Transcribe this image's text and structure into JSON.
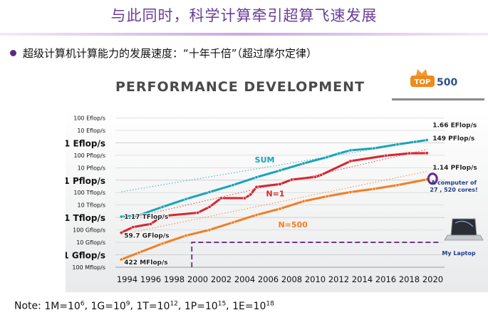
{
  "slide": {
    "title": "与此同时，科学计算牵引超算飞速发展",
    "bullet": "超级计算机计算能力的发展速度：“十年千倍”（超过摩尔定律）",
    "note_prefix": "Note: ",
    "note_items": [
      {
        "base": "1M=10",
        "exp": "6"
      },
      {
        "base": "1G=10",
        "exp": "9"
      },
      {
        "base": "1T=10",
        "exp": "12"
      },
      {
        "base": "1P=10",
        "exp": "15"
      },
      {
        "base": "1E=10",
        "exp": "18"
      }
    ]
  },
  "chart_data": {
    "type": "line",
    "title": "PERFORMANCE DEVELOPMENT",
    "logo": {
      "left": "TOP",
      "right": "500"
    },
    "y_scale": "log10",
    "y_unit": "flop/s",
    "ylim": [
      100000000.0,
      1e+21
    ],
    "xlim": [
      1993,
      2021
    ],
    "x_ticks": [
      1994,
      1996,
      1998,
      2000,
      2002,
      2004,
      2006,
      2008,
      2010,
      2012,
      2014,
      2016,
      2018,
      2020
    ],
    "y_ticks": [
      {
        "label": "100 Mflop/s",
        "value": 100000000.0,
        "major": false
      },
      {
        "label": "1 Gflop/s",
        "value": 1000000000.0,
        "major": true
      },
      {
        "label": "10 Gflop/s",
        "value": 10000000000.0,
        "major": false
      },
      {
        "label": "100 Gflop/s",
        "value": 100000000000.0,
        "major": false
      },
      {
        "label": "1 Tflop/s",
        "value": 1000000000000.0,
        "major": true
      },
      {
        "label": "10 Tflop/s",
        "value": 10000000000000.0,
        "major": false
      },
      {
        "label": "100 Tflop/s",
        "value": 100000000000000.0,
        "major": false
      },
      {
        "label": "1 Pflop/s",
        "value": 1000000000000000.0,
        "major": true
      },
      {
        "label": "10 Pflop/s",
        "value": 1e+16,
        "major": false
      },
      {
        "label": "100 Pflop/s",
        "value": 1e+17,
        "major": false
      },
      {
        "label": "1 Eflop/s",
        "value": 1e+18,
        "major": true
      },
      {
        "label": "10 Eflop/s",
        "value": 1e+19,
        "major": false
      },
      {
        "label": "100 Eflop/s",
        "value": 1e+20,
        "major": false
      }
    ],
    "series": [
      {
        "name": "SUM",
        "color": "#1aa3b8",
        "x": [
          1993.5,
          1995,
          1997,
          1999,
          2001,
          2003,
          2005,
          2007,
          2009,
          2011,
          2012,
          2013,
          2015,
          2017,
          2018.5,
          2019.5
        ],
        "values": [
          1170000000000.0,
          1500000000000.0,
          7000000000000.0,
          30000000000000.0,
          110000000000000.0,
          400000000000000.0,
          1700000000000000.0,
          6000000000000000.0,
          2.2e+16,
          7e+16,
          1.4e+17,
          2.5e+17,
          3.6e+17,
          7.5e+17,
          1.2e+18,
          1.66e+18
        ]
      },
      {
        "name": "N=1",
        "color": "#d7262e",
        "x": [
          1993.5,
          1994.5,
          1996,
          1997,
          2000,
          2001,
          2002,
          2004,
          2004.5,
          2005,
          2007,
          2008,
          2010,
          2010.5,
          2013,
          2016,
          2018,
          2019.5
        ],
        "values": [
          59700000000.0,
          170000000000.0,
          300000000000.0,
          1300000000000.0,
          2400000000000.0,
          7000000000000.0,
          36000000000000.0,
          36000000000000.0,
          70000000000000.0,
          280000000000000.0,
          480000000000000.0,
          1100000000000000.0,
          1800000000000000.0,
          2600000000000000.0,
          3.4e+16,
          9.3e+16,
          1.43e+17,
          1.49e+17
        ]
      },
      {
        "name": "N=500",
        "color": "#f07f24",
        "x": [
          1993.5,
          1995,
          1997,
          1999,
          2001,
          2003,
          2005,
          2007,
          2009,
          2011,
          2013,
          2015,
          2017,
          2019.5
        ],
        "values": [
          422000000.0,
          1500000000.0,
          8000000000.0,
          35000000000.0,
          100000000000.0,
          400000000000.0,
          1600000000000.0,
          5000000000000.0,
          20000000000000.0,
          50000000000000.0,
          110000000000000.0,
          200000000000000.0,
          400000000000000.0,
          1140000000000000.0
        ]
      }
    ],
    "trend_lines": [
      {
        "series": "SUM",
        "x": [
          1993.5,
          2019.5
        ],
        "values": [
          117000000000000.0,
          1.66e+18
        ]
      },
      {
        "series": "N=1",
        "x": [
          1993.5,
          2019.5
        ],
        "values": [
          597000000000.0,
          3e+17
        ]
      },
      {
        "series": "N=500",
        "x": [
          1993.5,
          2019.5
        ],
        "values": [
          42200000000.0,
          5000000000000000.0
        ]
      }
    ],
    "series_labels": [
      {
        "text": "SUM",
        "series": "SUM",
        "x": 2005.7,
        "value": 2.6e+16
      },
      {
        "text": "N=1",
        "series": "N=1",
        "x": 2006.6,
        "value": 50000000000000.0
      },
      {
        "text": "N=500",
        "series": "N=500",
        "x": 2008.1,
        "value": 160000000000.0
      }
    ],
    "annotations": [
      {
        "text": "1.66 EFlop/s",
        "series": "SUM"
      },
      {
        "text": "149 PFlop/s",
        "series": "N=1"
      },
      {
        "text": "1.14 PFlop/s",
        "series": "N=500"
      },
      {
        "text": "1.17 TFlop/s",
        "series": "SUM"
      },
      {
        "text": "59.7 GFlop/s",
        "series": "N=1"
      },
      {
        "text": "422 MFlop/s",
        "series": "N=500"
      }
    ],
    "laptop": {
      "label": "My Laptop",
      "value": 10000000000.0,
      "x_start": 1999.5,
      "color": "#6a2a8a",
      "computer_note_lines": [
        "A computer of",
        "27 , 520 cores!"
      ],
      "computer_point": {
        "x": 2019.5,
        "value": 1140000000000000.0
      }
    }
  }
}
